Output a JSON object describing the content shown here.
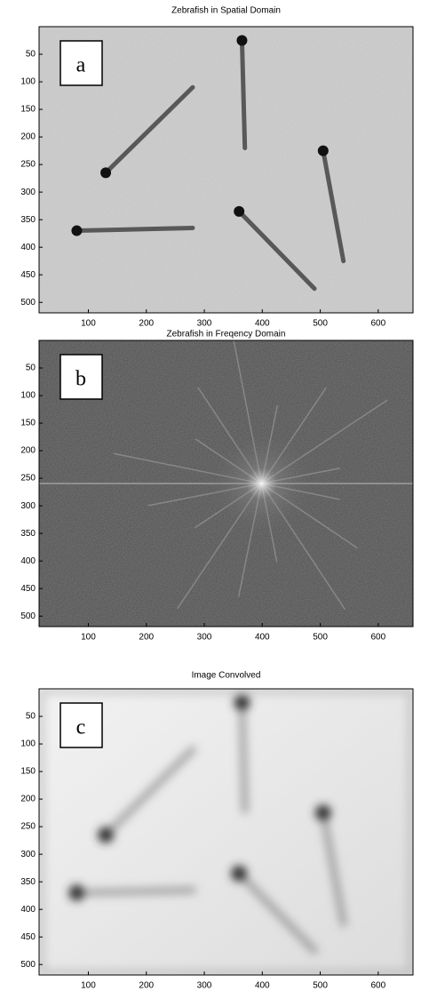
{
  "chart_data": [
    {
      "type": "image",
      "title": "Zebrafish in Spatial Domain",
      "label": "a",
      "xlim": [
        15,
        660
      ],
      "ylim": [
        0,
        519
      ],
      "xticks": [
        100,
        200,
        300,
        400,
        500,
        600
      ],
      "yticks": [
        50,
        100,
        150,
        200,
        250,
        300,
        350,
        400,
        450,
        500
      ]
    },
    {
      "type": "image",
      "title": "Zebrafish in Freqency Domain",
      "label": "b",
      "xlim": [
        15,
        660
      ],
      "ylim": [
        0,
        519
      ],
      "xticks": [
        100,
        200,
        300,
        400,
        500,
        600
      ],
      "yticks": [
        50,
        100,
        150,
        200,
        250,
        300,
        350,
        400,
        450,
        500
      ]
    },
    {
      "type": "image",
      "title": "Image Convolved",
      "label": "c",
      "xlim": [
        15,
        660
      ],
      "ylim": [
        0,
        519
      ],
      "xticks": [
        100,
        200,
        300,
        400,
        500,
        600
      ],
      "yticks": [
        50,
        100,
        150,
        200,
        250,
        300,
        350,
        400,
        450,
        500
      ]
    }
  ]
}
